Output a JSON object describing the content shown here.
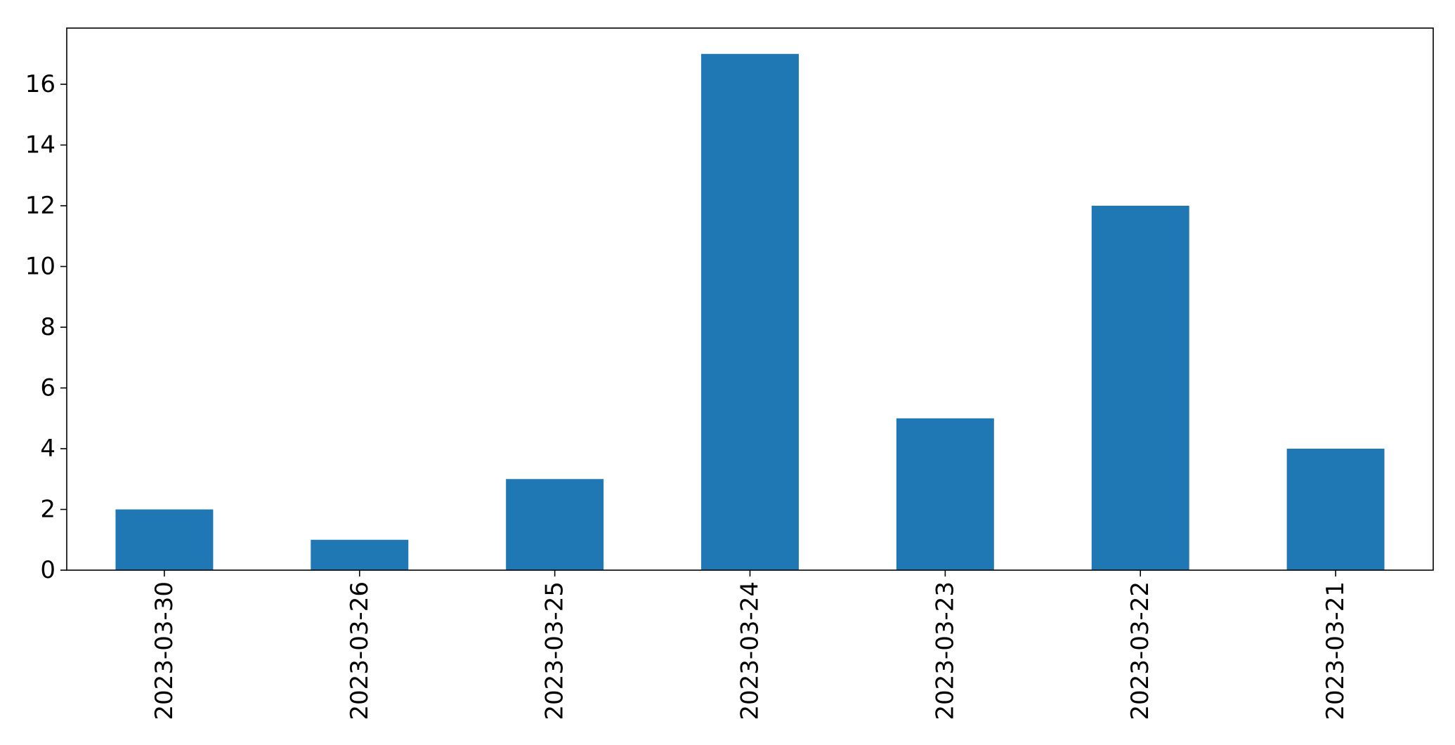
{
  "chart_data": {
    "type": "bar",
    "title": "",
    "xlabel": "",
    "ylabel": "",
    "categories": [
      "2023-03-30",
      "2023-03-26",
      "2023-03-25",
      "2023-03-24",
      "2023-03-23",
      "2023-03-22",
      "2023-03-21"
    ],
    "values": [
      2,
      1,
      3,
      17,
      5,
      12,
      4
    ],
    "ylim": [
      0,
      17.85
    ],
    "yticks": [
      0,
      2,
      4,
      6,
      8,
      10,
      12,
      14,
      16
    ],
    "grid": false,
    "legend": "none",
    "bar_color": "#1f77b4",
    "x_tick_rotation": "vertical"
  }
}
